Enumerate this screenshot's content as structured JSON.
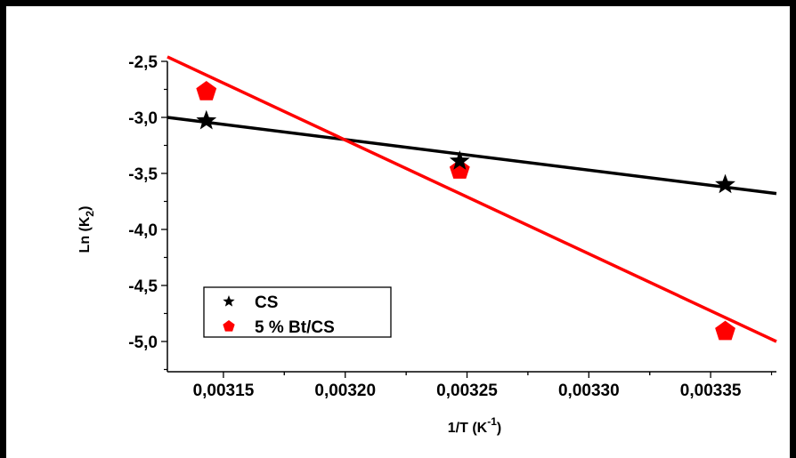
{
  "chart_data": {
    "type": "scatter",
    "xlabel": "1/T (K",
    "xlabel_sup": "-1",
    "xlabel_close": ")",
    "ylabel": "Ln (K",
    "ylabel_sub": "2",
    "ylabel_close": ")",
    "xlim": [
      0.003127,
      0.003377
    ],
    "ylim": [
      -5.27,
      -2.5
    ],
    "x_ticks": [
      0.00315,
      0.0032,
      0.00325,
      0.0033,
      0.00335
    ],
    "x_tick_labels": [
      "0,00315",
      "0,00320",
      "0,00325",
      "0,00330",
      "0,00335"
    ],
    "y_ticks": [
      -2.5,
      -3.0,
      -3.5,
      -4.0,
      -4.5,
      -5.0
    ],
    "y_tick_labels": [
      "-2,5",
      "-3,0",
      "-3,5",
      "-4,0",
      "-4,5",
      "-5,0"
    ],
    "grid": false,
    "legend_position": "bottom-left",
    "series": [
      {
        "name": "CS",
        "marker": "star",
        "color": "#000000",
        "x": [
          0.003143,
          0.003247,
          0.003356
        ],
        "y": [
          -3.03,
          -3.39,
          -3.6
        ],
        "fit_line": {
          "x": [
            0.003127,
            0.003377
          ],
          "y": [
            -3.0,
            -3.68
          ]
        }
      },
      {
        "name": "5 % Bt/CS",
        "marker": "pentagon",
        "color": "#ff0000",
        "x": [
          0.003143,
          0.003247,
          0.003356
        ],
        "y": [
          -2.77,
          -3.47,
          -4.91
        ],
        "fit_line": {
          "x": [
            0.003127,
            0.003377
          ],
          "y": [
            -2.46,
            -5.0
          ]
        }
      }
    ]
  }
}
